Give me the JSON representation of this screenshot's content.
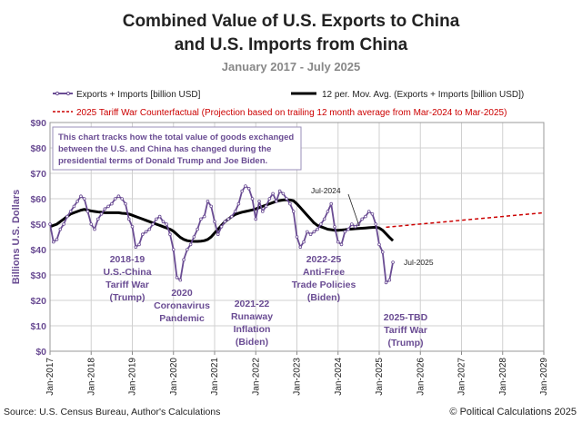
{
  "chart_data": {
    "type": "line",
    "title_line1": "Combined Value of U.S. Exports to China",
    "title_line2": "and U.S. Imports from China",
    "subtitle": "January 2017 - July 2025",
    "ylabel": "Billions U.S. Dollars",
    "xlabel": "",
    "ylim": [
      0,
      90
    ],
    "yticks": [
      0,
      10,
      20,
      30,
      40,
      50,
      60,
      70,
      80,
      90
    ],
    "ytick_labels": [
      "$0",
      "$10",
      "$20",
      "$30",
      "$40",
      "$50",
      "$60",
      "$70",
      "$80",
      "$90"
    ],
    "x_range": [
      "2017-01",
      "2029-01"
    ],
    "xticks": [
      "Jan-2017",
      "Jan-2018",
      "Jan-2019",
      "Jan-2020",
      "Jan-2021",
      "Jan-2022",
      "Jan-2023",
      "Jan-2024",
      "Jan-2025",
      "Jan-2026",
      "Jan-2027",
      "Jan-2028",
      "Jan-2029"
    ],
    "grid": true,
    "legend": {
      "placement": "top",
      "entries": [
        "Exports + Imports [billion USD]",
        "12 per. Mov. Avg. (Exports + Imports [billion USD])",
        "2025 Tariff War Counterfactual  (Projection based on trailing 12 month average from Mar-2024 to Mar-2025)"
      ]
    },
    "series": [
      {
        "name": "Exports + Imports [billion USD]",
        "color": "#6a4c93",
        "start": "2017-01",
        "values": [
          50,
          43,
          44,
          48,
          50,
          53,
          55,
          57,
          59,
          61,
          60,
          55,
          50,
          48,
          52,
          54,
          56,
          57,
          58,
          60,
          61,
          60,
          58,
          52,
          49,
          41,
          42,
          46,
          47,
          48,
          50,
          52,
          53,
          51,
          50,
          46,
          40,
          29,
          28,
          36,
          40,
          42,
          45,
          48,
          52,
          53,
          59,
          57,
          51,
          46,
          49,
          51,
          52,
          53,
          55,
          58,
          63,
          65,
          64,
          60,
          52,
          59,
          55,
          57,
          60,
          62,
          59,
          63,
          62,
          60,
          58,
          55,
          45,
          41,
          43,
          47,
          46,
          47,
          48,
          50,
          52,
          55,
          58,
          49,
          43,
          42,
          47,
          48,
          50,
          49,
          50,
          52,
          53,
          55,
          54,
          50,
          42,
          39,
          27,
          28,
          35
        ],
        "end_label": "Jul-2025"
      },
      {
        "name": "12 per. Mov. Avg. (Exports + Imports [billion USD])",
        "color": "#000000",
        "start": "2017-01",
        "values": [
          49,
          49.5,
          50,
          51,
          52,
          53,
          54,
          54.5,
          55,
          55.5,
          55.8,
          55.5,
          55.2,
          55,
          54.8,
          54.7,
          54.5,
          54.5,
          54.5,
          54.5,
          54.5,
          54.3,
          54.2,
          54,
          53.5,
          53,
          52.5,
          52,
          51.5,
          51,
          50.5,
          50,
          49.5,
          49,
          48.5,
          48,
          47.2,
          46,
          44.8,
          44,
          43.5,
          43.3,
          43.2,
          43.2,
          43.3,
          43.5,
          44,
          45,
          46.5,
          48,
          49.5,
          51,
          52,
          53,
          53.8,
          54.3,
          54.7,
          55,
          55.3,
          55.6,
          56,
          56.5,
          57,
          57.5,
          58,
          58.5,
          59,
          59.3,
          59.5,
          59.6,
          59.5,
          59.2,
          58,
          56.5,
          55,
          53.5,
          52,
          50.5,
          49.5,
          49,
          48.5,
          48,
          47.8,
          47.6,
          47.6,
          47.7,
          47.8,
          48,
          48.1,
          48.2,
          48.3,
          48.4,
          48.5,
          48.6,
          48.7,
          48.8,
          48.5,
          47.6,
          46.2,
          44.8,
          43.5
        ]
      },
      {
        "name": "2025 Tariff War Counterfactual  (Projection based on trailing 12 month average from Mar-2024 to Mar-2025)",
        "color": "#cc0000",
        "points": [
          [
            "2025-03",
            48.8
          ],
          [
            "2029-01",
            54.5
          ]
        ]
      }
    ],
    "annotations": [
      {
        "lines": [
          "This chart tracks how the total value of goods exchanged",
          "between the U.S. and China has changed during the",
          "presidential terms of Donald Trump and Joe Biden."
        ],
        "kind": "box"
      },
      {
        "lines": [
          "2018-19",
          "U.S.-China",
          "Tariff War",
          "(Trump)"
        ]
      },
      {
        "lines": [
          "2020",
          "Coronavirus",
          "Pandemic"
        ]
      },
      {
        "lines": [
          "2021-22",
          "Runaway",
          "Inflation",
          "(Biden)"
        ]
      },
      {
        "lines": [
          "2022-25",
          "Anti-Free",
          "Trade Policies",
          "(Biden)"
        ]
      },
      {
        "lines": [
          "2025-TBD",
          "Tariff War",
          "(Trump)"
        ]
      },
      {
        "lines": [
          "Jul-2024"
        ],
        "kind": "callout"
      },
      {
        "lines": [
          "Jul-2025"
        ],
        "kind": "end"
      }
    ]
  },
  "footer": {
    "source": "Source: U.S. Census Bureau, Author's Calculations",
    "copyright": "© Political Calculations 2025"
  }
}
